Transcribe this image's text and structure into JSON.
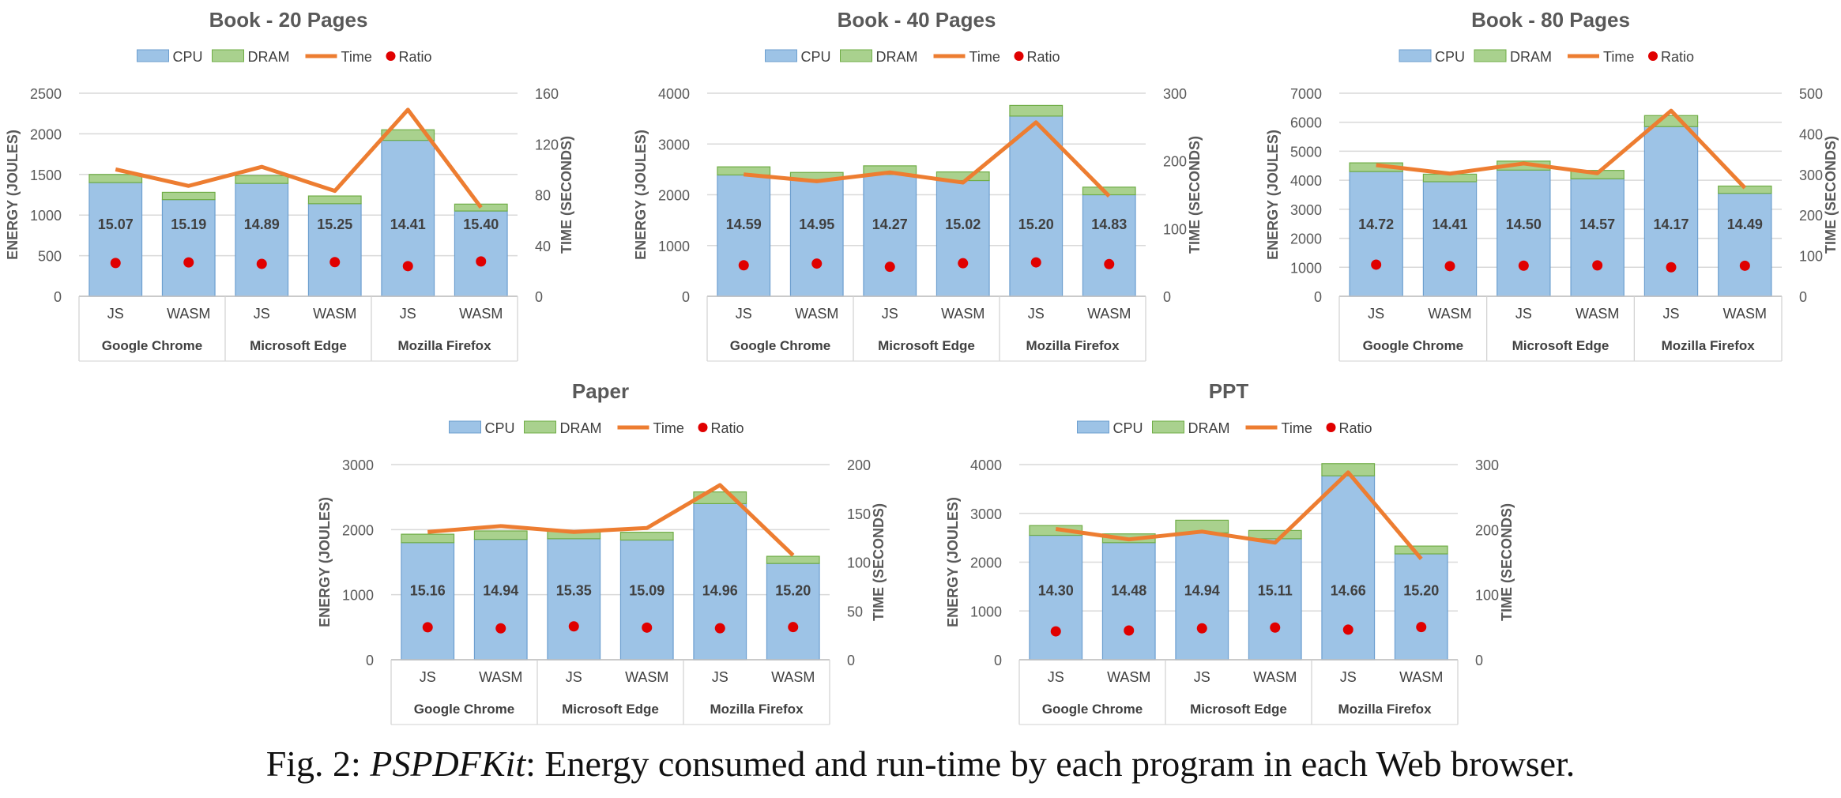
{
  "legend": {
    "cpu": "CPU",
    "dram": "DRAM",
    "time": "Time",
    "ratio": "Ratio"
  },
  "axes": {
    "ylabel": "ENERGY (JOULES)",
    "y2label": "TIME (SECONDS)"
  },
  "colors": {
    "cpu": "#9dc3e6",
    "cpu_dark": "#6d9fcf",
    "dram": "#a9d18e",
    "dram_dark": "#70ad47",
    "time": "#ed7d31",
    "ratio": "#e00000",
    "grid": "#d9d9d9"
  },
  "caption": {
    "prefix": "Fig. 2: ",
    "name": "PSPDFKit",
    "text": ": Energy consumed and run-time by each program in each Web browser."
  },
  "chart_data": [
    {
      "type": "bar",
      "title": "Book - 20 Pages",
      "categories": [
        "JS",
        "WASM",
        "JS",
        "WASM",
        "JS",
        "WASM"
      ],
      "groups": [
        "Google Chrome",
        "Microsoft Edge",
        "Mozilla Firefox"
      ],
      "ylim": [
        0,
        2500
      ],
      "yticks": [
        0,
        500,
        1000,
        1500,
        2000,
        2500
      ],
      "y2lim": [
        0,
        160
      ],
      "y2ticks": [
        0,
        40,
        80,
        120,
        160
      ],
      "series": [
        {
          "name": "CPU",
          "kind": "stacked-bar",
          "values": [
            1400,
            1190,
            1390,
            1140,
            1920,
            1050
          ]
        },
        {
          "name": "DRAM",
          "kind": "stacked-bar",
          "values": [
            100,
            90,
            95,
            95,
            130,
            85
          ]
        },
        {
          "name": "Time",
          "kind": "line",
          "axis": "secondary",
          "values": [
            100,
            87,
            102,
            83,
            147,
            70
          ]
        },
        {
          "name": "Ratio",
          "kind": "point",
          "values": [
            15.07,
            15.19,
            14.89,
            15.25,
            14.41,
            15.4
          ]
        }
      ],
      "ratio_labels": [
        "15.07",
        "15.19",
        "14.89",
        "15.25",
        "14.41",
        "15.40"
      ]
    },
    {
      "type": "bar",
      "title": "Book - 40 Pages",
      "categories": [
        "JS",
        "WASM",
        "JS",
        "WASM",
        "JS",
        "WASM"
      ],
      "groups": [
        "Google Chrome",
        "Microsoft Edge",
        "Mozilla Firefox"
      ],
      "ylim": [
        0,
        4000
      ],
      "yticks": [
        0,
        1000,
        2000,
        3000,
        4000
      ],
      "y2lim": [
        0,
        300
      ],
      "y2ticks": [
        0,
        100,
        200,
        300
      ],
      "series": [
        {
          "name": "CPU",
          "kind": "stacked-bar",
          "values": [
            2390,
            2300,
            2400,
            2280,
            3550,
            2000
          ]
        },
        {
          "name": "DRAM",
          "kind": "stacked-bar",
          "values": [
            160,
            140,
            170,
            170,
            210,
            150
          ]
        },
        {
          "name": "Time",
          "kind": "line",
          "axis": "secondary",
          "values": [
            180,
            170,
            183,
            168,
            257,
            148
          ]
        },
        {
          "name": "Ratio",
          "kind": "point",
          "values": [
            14.59,
            14.95,
            14.27,
            15.02,
            15.2,
            14.83
          ]
        }
      ],
      "ratio_labels": [
        "14.59",
        "14.95",
        "14.27",
        "15.02",
        "15.20",
        "14.83"
      ]
    },
    {
      "type": "bar",
      "title": "Book - 80 Pages",
      "categories": [
        "JS",
        "WASM",
        "JS",
        "WASM",
        "JS",
        "WASM"
      ],
      "groups": [
        "Google Chrome",
        "Microsoft Edge",
        "Mozilla Firefox"
      ],
      "ylim": [
        0,
        7000
      ],
      "yticks": [
        0,
        1000,
        2000,
        3000,
        4000,
        5000,
        6000,
        7000
      ],
      "y2lim": [
        0,
        500
      ],
      "y2ticks": [
        0,
        100,
        200,
        300,
        400,
        500
      ],
      "series": [
        {
          "name": "CPU",
          "kind": "stacked-bar",
          "values": [
            4300,
            3950,
            4350,
            4050,
            5850,
            3550
          ]
        },
        {
          "name": "DRAM",
          "kind": "stacked-bar",
          "values": [
            300,
            260,
            310,
            290,
            380,
            250
          ]
        },
        {
          "name": "Time",
          "kind": "line",
          "axis": "secondary",
          "values": [
            323,
            302,
            327,
            303,
            457,
            267
          ]
        },
        {
          "name": "Ratio",
          "kind": "point",
          "values": [
            14.72,
            14.41,
            14.5,
            14.57,
            14.17,
            14.49
          ]
        }
      ],
      "ratio_labels": [
        "14.72",
        "14.41",
        "14.50",
        "14.57",
        "14.17",
        "14.49"
      ]
    },
    {
      "type": "bar",
      "title": "Paper",
      "categories": [
        "JS",
        "WASM",
        "JS",
        "WASM",
        "JS",
        "WASM"
      ],
      "groups": [
        "Google Chrome",
        "Microsoft Edge",
        "Mozilla Firefox"
      ],
      "ylim": [
        0,
        3000
      ],
      "yticks": [
        0,
        1000,
        2000,
        3000
      ],
      "y2lim": [
        0,
        200
      ],
      "y2ticks": [
        0,
        50,
        100,
        150,
        200
      ],
      "series": [
        {
          "name": "CPU",
          "kind": "stacked-bar",
          "values": [
            1800,
            1850,
            1860,
            1840,
            2400,
            1480
          ]
        },
        {
          "name": "DRAM",
          "kind": "stacked-bar",
          "values": [
            130,
            130,
            120,
            120,
            180,
            110
          ]
        },
        {
          "name": "Time",
          "kind": "line",
          "axis": "secondary",
          "values": [
            131,
            137,
            131,
            135,
            179,
            107
          ]
        },
        {
          "name": "Ratio",
          "kind": "point",
          "values": [
            15.16,
            14.94,
            15.35,
            15.09,
            14.96,
            15.2
          ]
        }
      ],
      "ratio_labels": [
        "15.16",
        "14.94",
        "15.35",
        "15.09",
        "14.96",
        "15.20"
      ]
    },
    {
      "type": "bar",
      "title": "PPT",
      "categories": [
        "JS",
        "WASM",
        "JS",
        "WASM",
        "JS",
        "WASM"
      ],
      "groups": [
        "Google Chrome",
        "Microsoft Edge",
        "Mozilla Firefox"
      ],
      "ylim": [
        0,
        4000
      ],
      "yticks": [
        0,
        1000,
        2000,
        3000,
        4000
      ],
      "y2lim": [
        0,
        300
      ],
      "y2ticks": [
        0,
        100,
        200,
        300
      ],
      "series": [
        {
          "name": "CPU",
          "kind": "stacked-bar",
          "values": [
            2550,
            2400,
            2600,
            2480,
            3770,
            2170
          ]
        },
        {
          "name": "DRAM",
          "kind": "stacked-bar",
          "values": [
            200,
            180,
            260,
            170,
            250,
            160
          ]
        },
        {
          "name": "Time",
          "kind": "line",
          "axis": "secondary",
          "values": [
            201,
            185,
            197,
            180,
            288,
            155
          ]
        },
        {
          "name": "Ratio",
          "kind": "point",
          "values": [
            14.3,
            14.48,
            14.94,
            15.11,
            14.66,
            15.2
          ]
        }
      ],
      "ratio_labels": [
        "14.30",
        "14.48",
        "14.94",
        "15.11",
        "14.66",
        "15.20"
      ]
    }
  ]
}
